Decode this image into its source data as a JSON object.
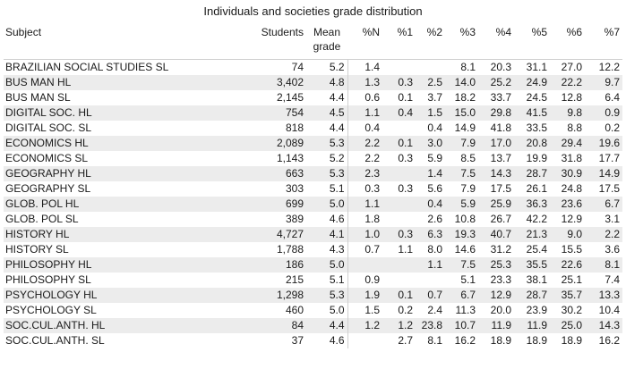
{
  "title": "Individuals and societies grade distribution",
  "columns": [
    "Subject",
    "Students",
    "Mean grade",
    "%N",
    "%1",
    "%2",
    "%3",
    "%4",
    "%5",
    "%6",
    "%7"
  ],
  "rows": [
    [
      "BRAZILIAN SOCIAL STUDIES SL",
      "74",
      "5.2",
      "1.4",
      "",
      "",
      "8.1",
      "20.3",
      "31.1",
      "27.0",
      "12.2"
    ],
    [
      "BUS MAN HL",
      "3,402",
      "4.8",
      "1.3",
      "0.3",
      "2.5",
      "14.0",
      "25.2",
      "24.9",
      "22.2",
      "9.7"
    ],
    [
      "BUS MAN SL",
      "2,145",
      "4.4",
      "0.6",
      "0.1",
      "3.7",
      "18.2",
      "33.7",
      "24.5",
      "12.8",
      "6.4"
    ],
    [
      "DIGITAL SOC. HL",
      "754",
      "4.5",
      "1.1",
      "0.4",
      "1.5",
      "15.0",
      "29.8",
      "41.5",
      "9.8",
      "0.9"
    ],
    [
      "DIGITAL SOC. SL",
      "818",
      "4.4",
      "0.4",
      "",
      "0.4",
      "14.9",
      "41.8",
      "33.5",
      "8.8",
      "0.2"
    ],
    [
      "ECONOMICS HL",
      "2,089",
      "5.3",
      "2.2",
      "0.1",
      "3.0",
      "7.9",
      "17.0",
      "20.8",
      "29.4",
      "19.6"
    ],
    [
      "ECONOMICS SL",
      "1,143",
      "5.2",
      "2.2",
      "0.3",
      "5.9",
      "8.5",
      "13.7",
      "19.9",
      "31.8",
      "17.7"
    ],
    [
      "GEOGRAPHY HL",
      "663",
      "5.3",
      "2.3",
      "",
      "1.4",
      "7.5",
      "14.3",
      "28.7",
      "30.9",
      "14.9"
    ],
    [
      "GEOGRAPHY SL",
      "303",
      "5.1",
      "0.3",
      "0.3",
      "5.6",
      "7.9",
      "17.5",
      "26.1",
      "24.8",
      "17.5"
    ],
    [
      "GLOB. POL HL",
      "699",
      "5.0",
      "1.1",
      "",
      "0.4",
      "5.9",
      "25.9",
      "36.3",
      "23.6",
      "6.7"
    ],
    [
      "GLOB. POL SL",
      "389",
      "4.6",
      "1.8",
      "",
      "2.6",
      "10.8",
      "26.7",
      "42.2",
      "12.9",
      "3.1"
    ],
    [
      "HISTORY HL",
      "4,727",
      "4.1",
      "1.0",
      "0.3",
      "6.3",
      "19.3",
      "40.7",
      "21.3",
      "9.0",
      "2.2"
    ],
    [
      "HISTORY SL",
      "1,788",
      "4.3",
      "0.7",
      "1.1",
      "8.0",
      "14.6",
      "31.2",
      "25.4",
      "15.5",
      "3.6"
    ],
    [
      "PHILOSOPHY HL",
      "186",
      "5.0",
      "",
      "",
      "1.1",
      "7.5",
      "25.3",
      "35.5",
      "22.6",
      "8.1"
    ],
    [
      "PHILOSOPHY SL",
      "215",
      "5.1",
      "0.9",
      "",
      "",
      "5.1",
      "23.3",
      "38.1",
      "25.1",
      "7.4"
    ],
    [
      "PSYCHOLOGY HL",
      "1,298",
      "5.3",
      "1.9",
      "0.1",
      "0.7",
      "6.7",
      "12.9",
      "28.7",
      "35.7",
      "13.3"
    ],
    [
      "PSYCHOLOGY SL",
      "460",
      "5.0",
      "1.5",
      "0.2",
      "2.4",
      "11.3",
      "20.0",
      "23.9",
      "30.2",
      "10.4"
    ],
    [
      "SOC.CUL.ANTH. HL",
      "84",
      "4.4",
      "1.2",
      "1.2",
      "23.8",
      "10.7",
      "11.9",
      "11.9",
      "25.0",
      "14.3"
    ],
    [
      "SOC.CUL.ANTH. SL",
      "37",
      "4.6",
      "",
      "2.7",
      "8.1",
      "16.2",
      "18.9",
      "18.9",
      "18.9",
      "16.2"
    ]
  ]
}
